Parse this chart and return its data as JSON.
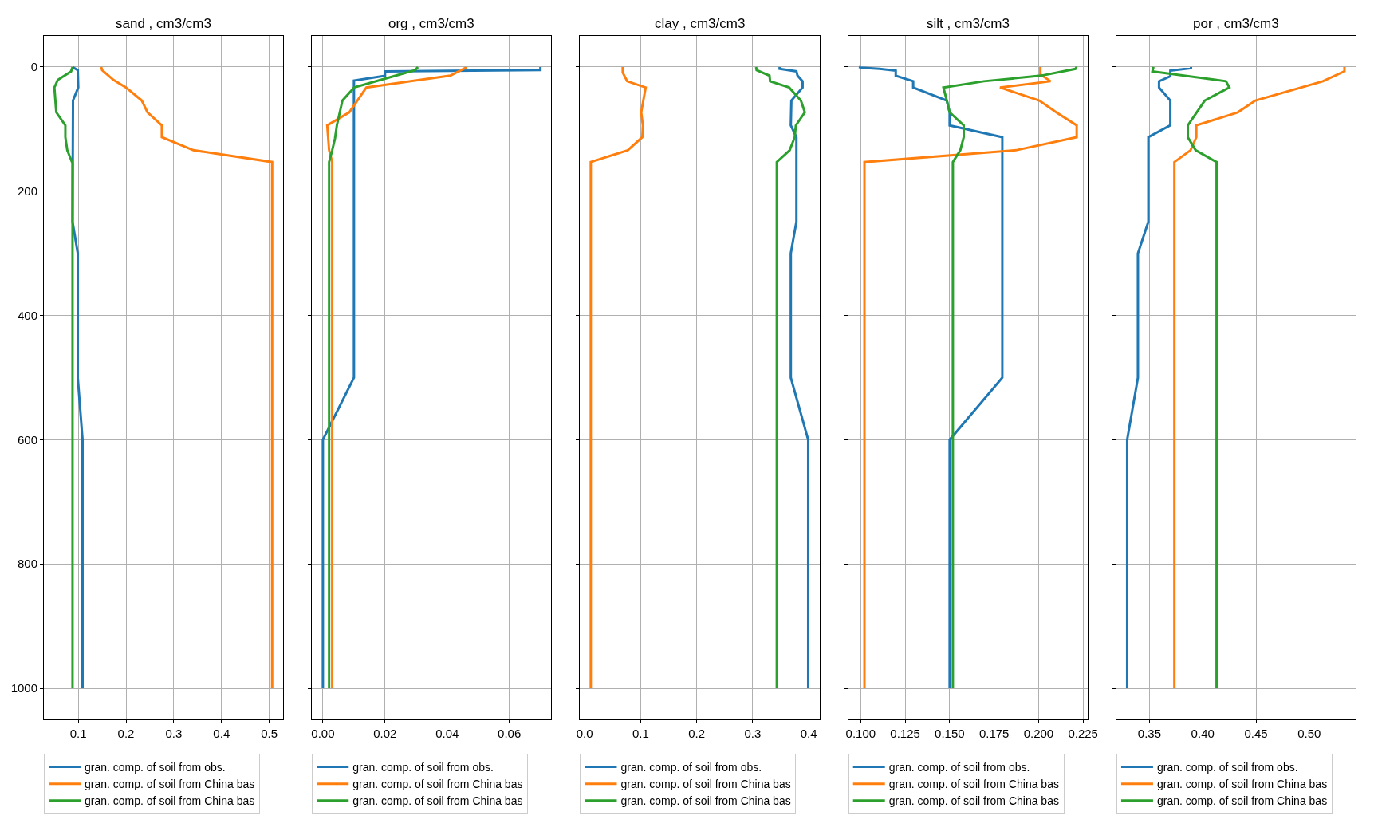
{
  "chart_data": [
    {
      "type": "line",
      "title": "sand , cm3/cm3",
      "orientation": "horizontal",
      "grid": true,
      "legend": "bottom",
      "line_style": "solid",
      "marker": "none",
      "xlim": [
        0.028,
        0.529
      ],
      "xticks": [
        0.1,
        0.2,
        0.3,
        0.4,
        0.5
      ],
      "ylim": [
        1050,
        -50
      ],
      "yticks": [
        0,
        200,
        400,
        600,
        800,
        1000
      ],
      "series": [
        {
          "name": "gran. comp. of soil from obs.",
          "color": "#1f77b4",
          "x": [
            0,
            5,
            33,
            54,
            249,
            300,
            500,
            600,
            1000
          ],
          "values": [
            0.088,
            0.099,
            0.1,
            0.089,
            0.088,
            0.099,
            0.099,
            0.109,
            0.109
          ]
        },
        {
          "name": "gran. comp. of soil from China bas",
          "color": "#ff7f0e",
          "x": [
            0,
            5,
            21,
            33,
            54,
            73,
            94,
            113,
            134,
            153,
            1000
          ],
          "values": [
            0.148,
            0.15,
            0.174,
            0.2,
            0.233,
            0.245,
            0.275,
            0.275,
            0.341,
            0.506,
            0.506
          ]
        },
        {
          "name": "gran. comp. of soil from China bas",
          "color": "#2ca02c",
          "x": [
            0,
            7,
            21,
            33,
            73,
            94,
            113,
            134,
            155,
            1000
          ],
          "values": [
            0.088,
            0.085,
            0.057,
            0.05,
            0.054,
            0.073,
            0.073,
            0.077,
            0.088,
            0.088
          ]
        }
      ]
    },
    {
      "type": "line",
      "title": "org , cm3/cm3",
      "orientation": "horizontal",
      "grid": true,
      "legend": "bottom",
      "line_style": "solid",
      "marker": "none",
      "tick_labels": "x",
      "xlim": [
        -0.0035,
        0.0735
      ],
      "xticks": [
        {
          "value": 0,
          "label": "0.00"
        },
        {
          "value": 0.02,
          "label": "0.02"
        },
        {
          "value": 0.04,
          "label": "0.04"
        },
        {
          "value": 0.06,
          "label": "0.06"
        }
      ],
      "ylim": [
        1050,
        -50
      ],
      "yticks": [
        0,
        200,
        400,
        600,
        800,
        1000
      ],
      "series": [
        {
          "name": "gran. comp. of soil from obs.",
          "color": "#1f77b4",
          "x": [
            0,
            5,
            7,
            14,
            22,
            500,
            600,
            1000
          ],
          "values": [
            0.07,
            0.07,
            0.02,
            0.02,
            0.01,
            0.01,
            0.0,
            0.0
          ]
        },
        {
          "name": "gran. comp. of soil from China bas",
          "color": "#ff7f0e",
          "x": [
            0,
            1,
            14,
            33,
            73,
            94,
            134,
            153,
            1000
          ],
          "values": [
            0.046,
            0.046,
            0.041,
            0.014,
            0.0085,
            0.0014,
            0.002,
            0.003,
            0.003
          ]
        },
        {
          "name": "gran. comp. of soil from China bas",
          "color": "#2ca02c",
          "x": [
            0,
            5,
            33,
            54,
            94,
            115,
            134,
            153,
            1000
          ],
          "values": [
            0.0306,
            0.0297,
            0.0101,
            0.0063,
            0.0045,
            0.0039,
            0.003,
            0.002,
            0.002
          ]
        }
      ]
    },
    {
      "type": "line",
      "title": "clay , cm3/cm3",
      "orientation": "horizontal",
      "grid": true,
      "legend": "bottom",
      "line_style": "solid",
      "marker": "none",
      "tick_labels": "x",
      "xlim": [
        -0.008,
        0.419
      ],
      "xticks": [
        {
          "value": 0,
          "label": "0.0"
        },
        0.1,
        0.2,
        0.3,
        0.4
      ],
      "ylim": [
        1050,
        -50
      ],
      "yticks": [
        0,
        200,
        400,
        600,
        800,
        1000
      ],
      "series": [
        {
          "name": "gran. comp. of soil from obs.",
          "color": "#1f77b4",
          "x": [
            0,
            3,
            7,
            14,
            23,
            33,
            54,
            94,
            113,
            249,
            300,
            500,
            600,
            1000
          ],
          "values": [
            0.348,
            0.348,
            0.378,
            0.38,
            0.389,
            0.389,
            0.369,
            0.368,
            0.378,
            0.378,
            0.368,
            0.368,
            0.399,
            0.399
          ]
        },
        {
          "name": "gran. comp. of soil from China bas",
          "color": "#ff7f0e",
          "x": [
            0,
            9,
            23,
            33,
            73,
            94,
            113,
            134,
            153,
            1000
          ],
          "values": [
            0.068,
            0.068,
            0.076,
            0.109,
            0.101,
            0.104,
            0.103,
            0.077,
            0.011,
            0.011
          ]
        },
        {
          "name": "gran. comp. of soil from China bas",
          "color": "#2ca02c",
          "x": [
            0,
            5,
            14,
            23,
            33,
            54,
            73,
            94,
            113,
            134,
            153,
            1000
          ],
          "values": [
            0.306,
            0.307,
            0.33,
            0.331,
            0.365,
            0.386,
            0.393,
            0.377,
            0.375,
            0.366,
            0.343,
            0.343
          ]
        }
      ]
    },
    {
      "type": "line",
      "title": "silt , cm3/cm3",
      "orientation": "horizontal",
      "grid": true,
      "legend": "bottom",
      "line_style": "solid",
      "marker": "none",
      "tick_labels": "x",
      "xlim": [
        0.093,
        0.2275
      ],
      "xticks": [
        {
          "value": 0.1,
          "label": "0.100"
        },
        0.125,
        {
          "value": 0.15,
          "label": "0.150"
        },
        0.175,
        {
          "value": 0.2,
          "label": "0.200"
        },
        0.225
      ],
      "ylim": [
        1050,
        -50
      ],
      "yticks": [
        0,
        200,
        400,
        600,
        800,
        1000
      ],
      "series": [
        {
          "name": "gran. comp. of soil from obs.",
          "color": "#1f77b4",
          "x": [
            0,
            1,
            3,
            6,
            14,
            23,
            33,
            54,
            73,
            94,
            113,
            500,
            600,
            1000
          ],
          "values": [
            0.099,
            0.1,
            0.1106,
            0.1197,
            0.1197,
            0.1295,
            0.1295,
            0.1484,
            0.15,
            0.15,
            0.1796,
            0.1796,
            0.15,
            0.15
          ]
        },
        {
          "name": "gran. comp. of soil from China bas",
          "color": "#ff7f0e",
          "x": [
            0,
            12,
            23,
            33,
            54,
            73,
            94,
            113,
            134,
            153,
            1000
          ],
          "values": [
            0.201,
            0.201,
            0.2067,
            0.1783,
            0.2004,
            0.2099,
            0.2214,
            0.2214,
            0.1872,
            0.1021,
            0.1021
          ]
        },
        {
          "name": "gran. comp. of soil from China bas",
          "color": "#2ca02c",
          "x": [
            0,
            3,
            14,
            23,
            33,
            54,
            73,
            94,
            113,
            134,
            153,
            1000
          ],
          "values": [
            0.2214,
            0.2207,
            0.2014,
            0.1692,
            0.1465,
            0.1484,
            0.15,
            0.1579,
            0.1579,
            0.156,
            0.1518,
            0.1518
          ]
        }
      ]
    },
    {
      "type": "line",
      "title": "por , cm3/cm3",
      "orientation": "horizontal",
      "grid": true,
      "legend": "bottom",
      "line_style": "solid",
      "marker": "none",
      "tick_labels": "x",
      "xlim": [
        0.319,
        0.5435
      ],
      "xticks": [
        {
          "value": 0.35,
          "label": "0.35"
        },
        {
          "value": 0.4,
          "label": "0.40"
        },
        {
          "value": 0.45,
          "label": "0.45"
        },
        {
          "value": 0.5,
          "label": "0.50"
        }
      ],
      "ylim": [
        1050,
        -50
      ],
      "yticks": [
        0,
        200,
        400,
        600,
        800,
        1000
      ],
      "series": [
        {
          "name": "gran. comp. of soil from obs.",
          "color": "#1f77b4",
          "x": [
            0,
            2,
            6,
            15,
            23,
            33,
            54,
            94,
            113,
            249,
            300,
            500,
            600,
            1000
          ],
          "values": [
            0.389,
            0.389,
            0.3696,
            0.3696,
            0.359,
            0.359,
            0.3696,
            0.3696,
            0.349,
            0.349,
            0.3392,
            0.3392,
            0.3291,
            0.3291
          ]
        },
        {
          "name": "gran. comp. of soil from China bas",
          "color": "#ff7f0e",
          "x": [
            0,
            7,
            23,
            54,
            73,
            94,
            113,
            134,
            153,
            1000
          ],
          "values": [
            0.533,
            0.533,
            0.5127,
            0.4494,
            0.4329,
            0.394,
            0.394,
            0.3886,
            0.3734,
            0.3734
          ]
        },
        {
          "name": "gran. comp. of soil from China bas",
          "color": "#2ca02c",
          "x": [
            0,
            7,
            23,
            33,
            54,
            94,
            113,
            134,
            153,
            1000
          ],
          "values": [
            0.3538,
            0.3528,
            0.4218,
            0.425,
            0.4019,
            0.386,
            0.386,
            0.3934,
            0.413,
            0.413
          ]
        }
      ]
    }
  ]
}
